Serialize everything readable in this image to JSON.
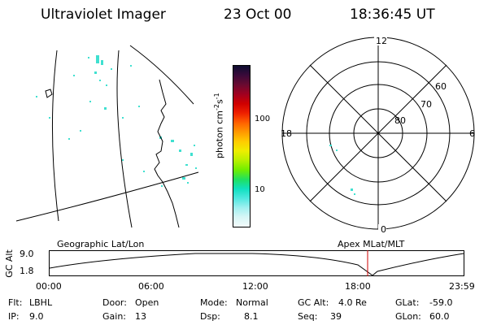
{
  "header": {
    "instrument": "Ultraviolet Imager",
    "date": "23 Oct 00",
    "time": "18:36:45 UT"
  },
  "geo_panel": {
    "title": "Geographic Lat/Lon"
  },
  "colorbar": {
    "unit_label": "photon cm-2s-1",
    "ticks": [
      "100",
      "10"
    ],
    "colors": [
      "#0d0d30",
      "#3a0a3a",
      "#6a0a30",
      "#a00020",
      "#d00000",
      "#ee2000",
      "#ff6000",
      "#ff9900",
      "#ffcc00",
      "#eeee00",
      "#b8f000",
      "#70ee00",
      "#20e060",
      "#10e0c0",
      "#50e8e0",
      "#a0f0f0",
      "#d8f6f6",
      "#f2fbfb"
    ]
  },
  "polar_plot": {
    "title": "Apex MLat/MLT",
    "mlt_labels": {
      "top": "12",
      "left": "18",
      "right": "6",
      "bottom": "0"
    },
    "lat_labels": [
      "60",
      "70",
      "80"
    ]
  },
  "timeline": {
    "y_label": "GC Alt",
    "y_ticks": [
      "9.0",
      "1.8"
    ],
    "x_ticks": [
      "00:00",
      "06:00",
      "12:00",
      "18:00",
      "23:59"
    ],
    "marker_color": "#cc0000"
  },
  "info": {
    "flt_label": "Flt:",
    "flt_value": "LBHL",
    "ip_label": "IP:",
    "ip_value": "9.0",
    "door_label": "Door:",
    "door_value": "Open",
    "gain_label": "Gain:",
    "gain_value": "13",
    "mode_label": "Mode:",
    "mode_value": "Normal",
    "dsp_label": "Dsp:",
    "dsp_value": "8.1",
    "gcalt_label": "GC Alt:",
    "gcalt_value": "4.0 Re",
    "seq_label": "Seq:",
    "seq_value": "39",
    "glat_label": "GLat:",
    "glat_value": "-59.0",
    "glon_label": "GLon:",
    "glon_value": "60.0"
  }
}
